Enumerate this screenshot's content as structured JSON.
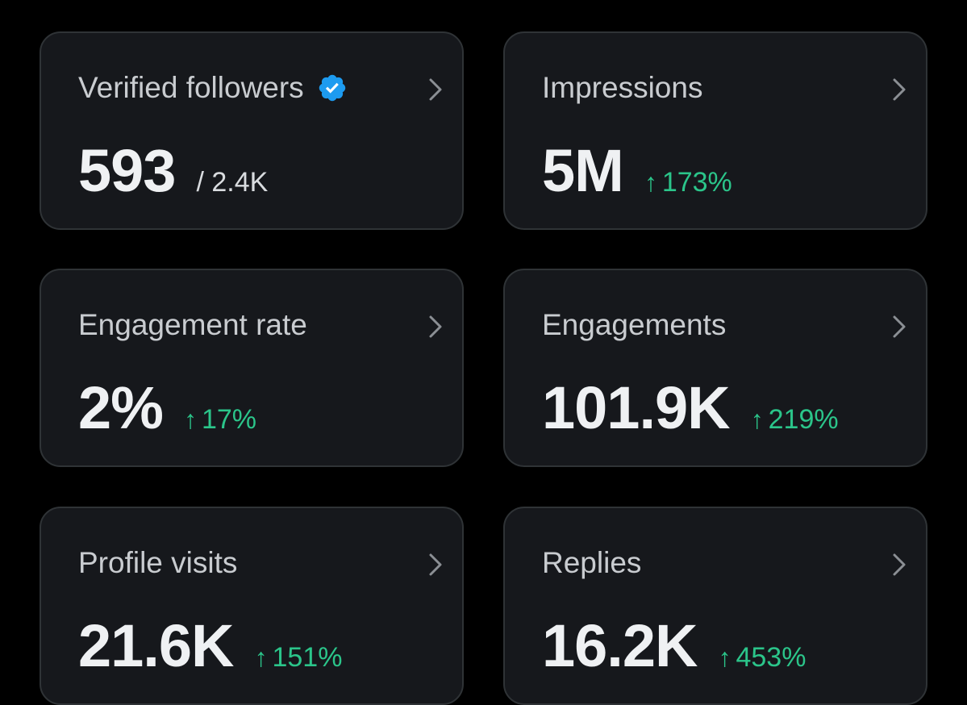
{
  "colors": {
    "background": "#000000",
    "card_background": "#16181c",
    "card_border": "#2f3336",
    "positive_delta": "#2bc58a",
    "verified_badge": "#1d9bf0"
  },
  "icons": {
    "verified": "verified-badge-icon",
    "chevron": "chevron-right-icon",
    "delta_up": "arrow-up-icon"
  },
  "cards": [
    {
      "title": "Verified followers",
      "value": "593",
      "sub_value": "/ 2.4K"
    },
    {
      "title": "Impressions",
      "value": "5M",
      "delta_arrow": "↑",
      "delta": "173%"
    },
    {
      "title": "Engagement rate",
      "value": "2%",
      "delta_arrow": "↑",
      "delta": "17%"
    },
    {
      "title": "Engagements",
      "value": "101.9K",
      "delta_arrow": "↑",
      "delta": "219%"
    },
    {
      "title": "Profile visits",
      "value": "21.6K",
      "delta_arrow": "↑",
      "delta": "151%"
    },
    {
      "title": "Replies",
      "value": "16.2K",
      "delta_arrow": "↑",
      "delta": "453%"
    }
  ]
}
